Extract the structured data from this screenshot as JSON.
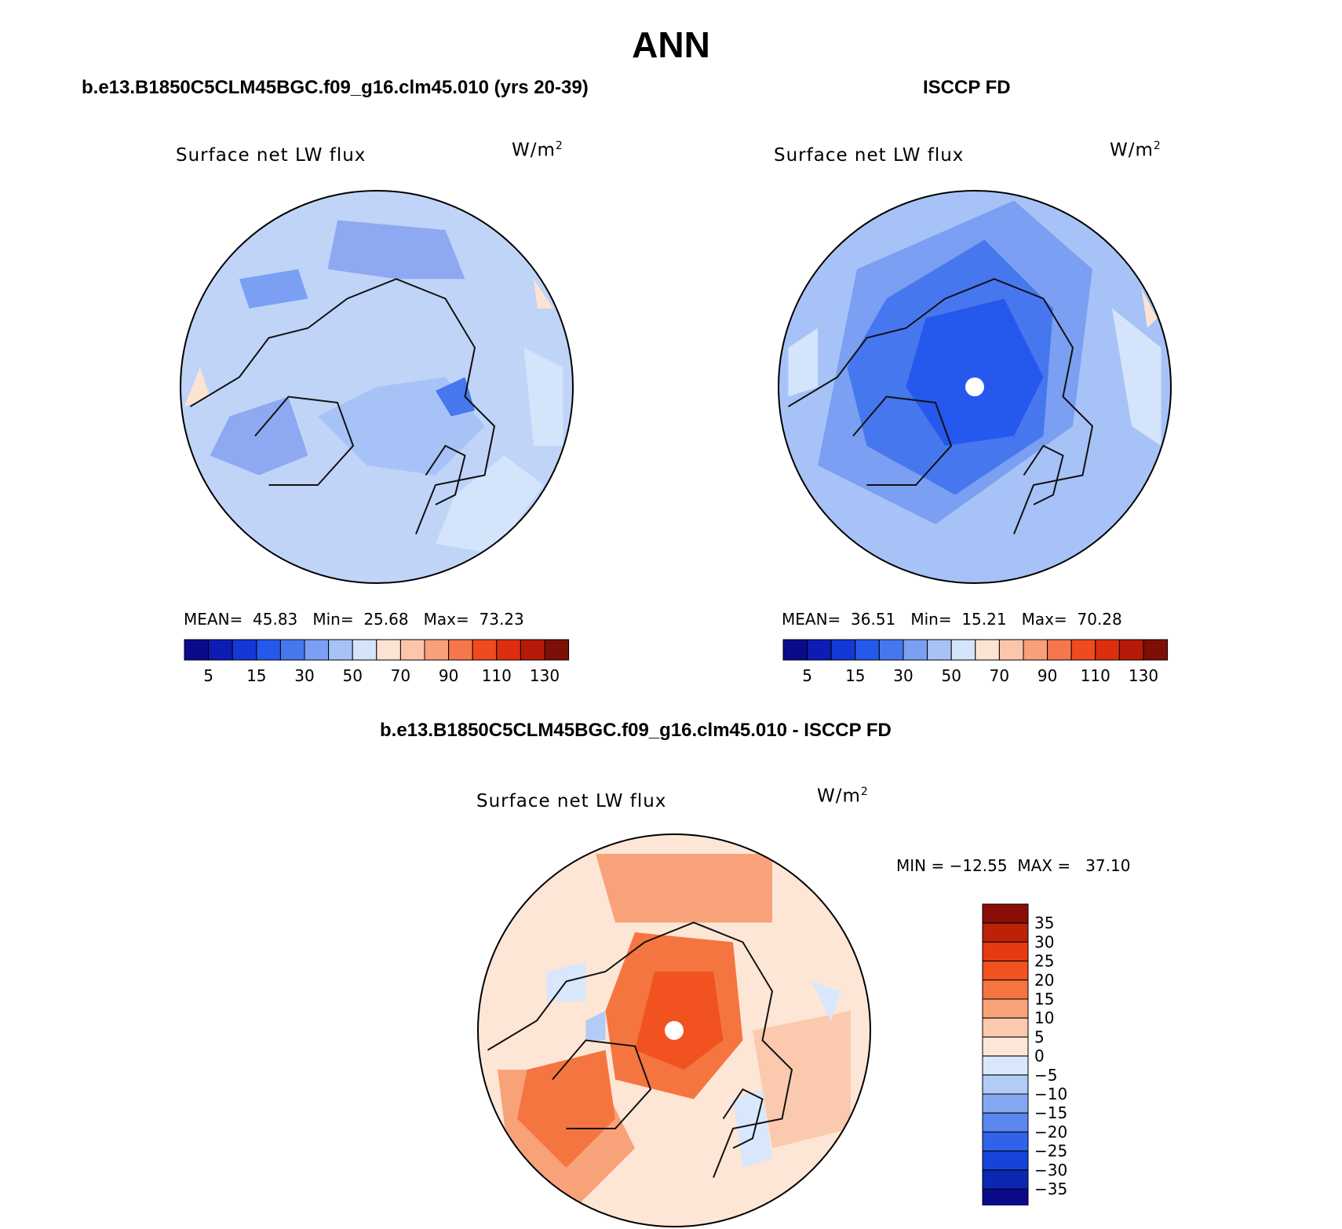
{
  "figure": {
    "title": "ANN",
    "diff_title": "b.e13.B1850C5CLM45BGC.f09_g16.clm45.010 - ISCCP FD"
  },
  "panels": [
    {
      "case_title": "b.e13.B1850C5CLM45BGC.f09_g16.clm45.010 (yrs 20-39)",
      "variable": "Surface net LW flux",
      "units": "W/m",
      "units_exp": "2",
      "stats": {
        "mean_label": "MEAN=",
        "mean": "45.83",
        "min_label": "Min=",
        "min": "25.68",
        "max_label": "Max=",
        "max": "73.23"
      }
    },
    {
      "case_title": "ISCCP FD",
      "variable": "Surface net LW flux",
      "units": "W/m",
      "units_exp": "2",
      "stats": {
        "mean_label": "MEAN=",
        "mean": "36.51",
        "min_label": "Min=",
        "min": "15.21",
        "max_label": "Max=",
        "max": "70.28"
      }
    },
    {
      "variable": "Surface net LW flux",
      "units": "W/m",
      "units_exp": "2",
      "stats": {
        "min_label": "MIN =",
        "min": "−12.55",
        "max_label": "MAX =",
        "max": "37.10"
      }
    }
  ],
  "colorbar_abs": {
    "colors": [
      "#0a0a8c",
      "#0c1cb4",
      "#1438d8",
      "#2558ec",
      "#4677ee",
      "#7b9ff2",
      "#a7c2f7",
      "#d4e4fa",
      "#fde3d2",
      "#fbc6aa",
      "#f8a07a",
      "#f6774a",
      "#f14a1f",
      "#df2d10",
      "#b81a09",
      "#7e0f07"
    ],
    "tick_labels": [
      "5",
      "15",
      "30",
      "50",
      "70",
      "90",
      "110",
      "130"
    ],
    "tick_after_box": [
      1,
      3,
      5,
      7,
      9,
      11,
      13,
      15
    ]
  },
  "colorbar_diff": {
    "colors_top_to_bottom": [
      "#8a0d07",
      "#bc2208",
      "#e63b12",
      "#f2521f",
      "#f57540",
      "#f8a27a",
      "#fbc9ad",
      "#fde6d6",
      "#d8e7fb",
      "#b2cbf7",
      "#86a8f2",
      "#5b86ee",
      "#2f63ec",
      "#1744d8",
      "#0c27b2",
      "#0a0a88"
    ],
    "tick_labels": [
      "35",
      "30",
      "25",
      "20",
      "15",
      "10",
      "5",
      "0",
      "−5",
      "−10",
      "−15",
      "−20",
      "−25",
      "−30",
      "−35"
    ]
  },
  "maps": [
    {
      "base_color": "#c0d4f8",
      "regions": [
        {
          "color": "#a7c2f7",
          "points": [
            [
              0.0,
              0.0
            ],
            [
              0.35,
              -0.05
            ],
            [
              0.55,
              0.2
            ],
            [
              0.3,
              0.45
            ],
            [
              -0.05,
              0.4
            ],
            [
              -0.3,
              0.15
            ]
          ]
        },
        {
          "color": "#8ea9f2",
          "points": [
            [
              -0.75,
              0.15
            ],
            [
              -0.45,
              0.05
            ],
            [
              -0.35,
              0.35
            ],
            [
              -0.6,
              0.45
            ],
            [
              -0.85,
              0.35
            ]
          ]
        },
        {
          "color": "#8ea9f2",
          "points": [
            [
              -0.2,
              -0.85
            ],
            [
              0.35,
              -0.8
            ],
            [
              0.45,
              -0.55
            ],
            [
              0.1,
              -0.55
            ],
            [
              -0.25,
              -0.6
            ]
          ]
        },
        {
          "color": "#d4e4fa",
          "points": [
            [
              0.4,
              0.55
            ],
            [
              0.65,
              0.35
            ],
            [
              0.85,
              0.5
            ],
            [
              0.6,
              0.85
            ],
            [
              0.3,
              0.8
            ]
          ]
        },
        {
          "color": "#d4e4fa",
          "points": [
            [
              0.75,
              -0.2
            ],
            [
              0.95,
              -0.1
            ],
            [
              0.95,
              0.3
            ],
            [
              0.8,
              0.3
            ]
          ]
        },
        {
          "color": "#fde3d2",
          "points": [
            [
              -0.98,
              0.1
            ],
            [
              -0.9,
              -0.1
            ],
            [
              -0.85,
              0.05
            ]
          ]
        },
        {
          "color": "#fde3d2",
          "points": [
            [
              0.8,
              -0.55
            ],
            [
              0.9,
              -0.4
            ],
            [
              0.82,
              -0.4
            ]
          ]
        },
        {
          "color": "#4677ee",
          "points": [
            [
              0.3,
              0.02
            ],
            [
              0.45,
              -0.05
            ],
            [
              0.5,
              0.12
            ],
            [
              0.38,
              0.15
            ]
          ]
        },
        {
          "color": "#7b9ff2",
          "points": [
            [
              -0.7,
              -0.55
            ],
            [
              -0.4,
              -0.6
            ],
            [
              -0.35,
              -0.45
            ],
            [
              -0.65,
              -0.4
            ]
          ]
        }
      ],
      "pole_hole": false
    },
    {
      "base_color": "#a7c2f7",
      "regions": [
        {
          "color": "#7b9ff2",
          "points": [
            [
              -0.6,
              -0.6
            ],
            [
              0.2,
              -0.95
            ],
            [
              0.6,
              -0.6
            ],
            [
              0.5,
              0.2
            ],
            [
              -0.2,
              0.7
            ],
            [
              -0.8,
              0.4
            ]
          ]
        },
        {
          "color": "#4677ee",
          "points": [
            [
              -0.45,
              -0.45
            ],
            [
              0.05,
              -0.75
            ],
            [
              0.4,
              -0.4
            ],
            [
              0.35,
              0.25
            ],
            [
              -0.1,
              0.55
            ],
            [
              -0.55,
              0.3
            ],
            [
              -0.65,
              -0.1
            ]
          ]
        },
        {
          "color": "#2558ec",
          "points": [
            [
              -0.25,
              -0.35
            ],
            [
              0.15,
              -0.45
            ],
            [
              0.35,
              -0.05
            ],
            [
              0.2,
              0.25
            ],
            [
              -0.15,
              0.3
            ],
            [
              -0.35,
              0.0
            ]
          ]
        },
        {
          "color": "#d4e4fa",
          "points": [
            [
              0.7,
              -0.4
            ],
            [
              0.95,
              -0.2
            ],
            [
              0.95,
              0.3
            ],
            [
              0.8,
              0.2
            ]
          ]
        },
        {
          "color": "#fde3d2",
          "points": [
            [
              0.85,
              -0.5
            ],
            [
              0.93,
              -0.35
            ],
            [
              0.88,
              -0.3
            ]
          ]
        },
        {
          "color": "#d4e4fa",
          "points": [
            [
              -0.95,
              -0.2
            ],
            [
              -0.8,
              -0.3
            ],
            [
              -0.8,
              0.0
            ],
            [
              -0.95,
              0.05
            ]
          ]
        }
      ],
      "pole_hole": true
    },
    {
      "base_color": "#fde6d6",
      "regions": [
        {
          "color": "#f8a27a",
          "points": [
            [
              -0.9,
              0.2
            ],
            [
              -0.4,
              0.2
            ],
            [
              -0.2,
              0.6
            ],
            [
              -0.5,
              0.9
            ],
            [
              -0.85,
              0.6
            ]
          ]
        },
        {
          "color": "#f57540",
          "points": [
            [
              -0.75,
              0.2
            ],
            [
              -0.35,
              0.1
            ],
            [
              -0.3,
              0.45
            ],
            [
              -0.55,
              0.7
            ],
            [
              -0.8,
              0.45
            ]
          ]
        },
        {
          "color": "#f57540",
          "points": [
            [
              -0.2,
              -0.5
            ],
            [
              0.3,
              -0.45
            ],
            [
              0.35,
              0.05
            ],
            [
              0.1,
              0.35
            ],
            [
              -0.3,
              0.25
            ],
            [
              -0.35,
              -0.1
            ]
          ]
        },
        {
          "color": "#f2521f",
          "points": [
            [
              -0.1,
              -0.3
            ],
            [
              0.2,
              -0.3
            ],
            [
              0.25,
              0.05
            ],
            [
              0.05,
              0.2
            ],
            [
              -0.2,
              0.1
            ]
          ]
        },
        {
          "color": "#f8a27a",
          "points": [
            [
              -0.4,
              -0.9
            ],
            [
              0.5,
              -0.9
            ],
            [
              0.5,
              -0.55
            ],
            [
              -0.3,
              -0.55
            ]
          ]
        },
        {
          "color": "#fbc9ad",
          "points": [
            [
              0.4,
              0.0
            ],
            [
              0.9,
              -0.1
            ],
            [
              0.9,
              0.5
            ],
            [
              0.5,
              0.6
            ]
          ]
        },
        {
          "color": "#d8e7fb",
          "points": [
            [
              0.3,
              0.35
            ],
            [
              0.45,
              0.3
            ],
            [
              0.5,
              0.65
            ],
            [
              0.35,
              0.7
            ]
          ]
        },
        {
          "color": "#d8e7fb",
          "points": [
            [
              -0.65,
              -0.3
            ],
            [
              -0.45,
              -0.35
            ],
            [
              -0.45,
              -0.15
            ],
            [
              -0.65,
              -0.15
            ]
          ]
        },
        {
          "color": "#d8e7fb",
          "points": [
            [
              0.7,
              -0.25
            ],
            [
              0.85,
              -0.2
            ],
            [
              0.8,
              -0.05
            ]
          ]
        },
        {
          "color": "#b2cbf7",
          "points": [
            [
              -0.45,
              -0.05
            ],
            [
              -0.35,
              -0.1
            ],
            [
              -0.35,
              0.05
            ],
            [
              -0.45,
              0.05
            ]
          ]
        }
      ],
      "pole_hole": true
    }
  ]
}
